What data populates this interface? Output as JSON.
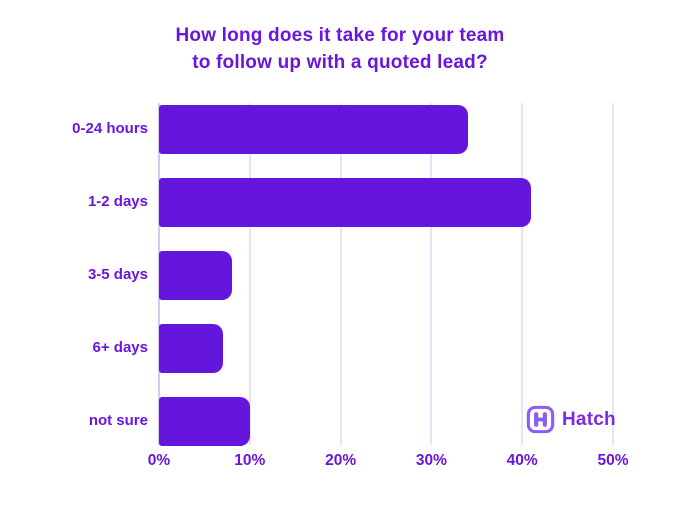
{
  "title": {
    "line1": "How long does it take for your team",
    "line2": "to follow up with a quoted lead?"
  },
  "chart_data": {
    "type": "bar",
    "orientation": "horizontal",
    "title": "How long does it take for your team to follow up with a quoted lead?",
    "categories": [
      "0-24 hours",
      "1-2 days",
      "3-5 days",
      "6+ days",
      "not sure"
    ],
    "values": [
      34,
      41,
      8,
      7,
      10
    ],
    "unit": "%",
    "xlabel": "",
    "ylabel": "",
    "xlim": [
      0,
      50
    ],
    "xtick_values": [
      0,
      10,
      20,
      30,
      40,
      50
    ],
    "xtick_labels": [
      "0%",
      "10%",
      "20%",
      "30%",
      "40%",
      "50%"
    ],
    "grid": "vertical-only",
    "legend": "none"
  },
  "branding": {
    "logo_text": "Hatch",
    "logo_icon": "hatch-h-icon"
  },
  "colors": {
    "background": "#ffffff",
    "bar": "#6516dc",
    "text": "#6a16dc",
    "gridline": "#e8e1f7",
    "axis_line": "#d6c9ef",
    "logo_icon": "#8b5cf6",
    "logo_text": "#7c2ae8"
  }
}
